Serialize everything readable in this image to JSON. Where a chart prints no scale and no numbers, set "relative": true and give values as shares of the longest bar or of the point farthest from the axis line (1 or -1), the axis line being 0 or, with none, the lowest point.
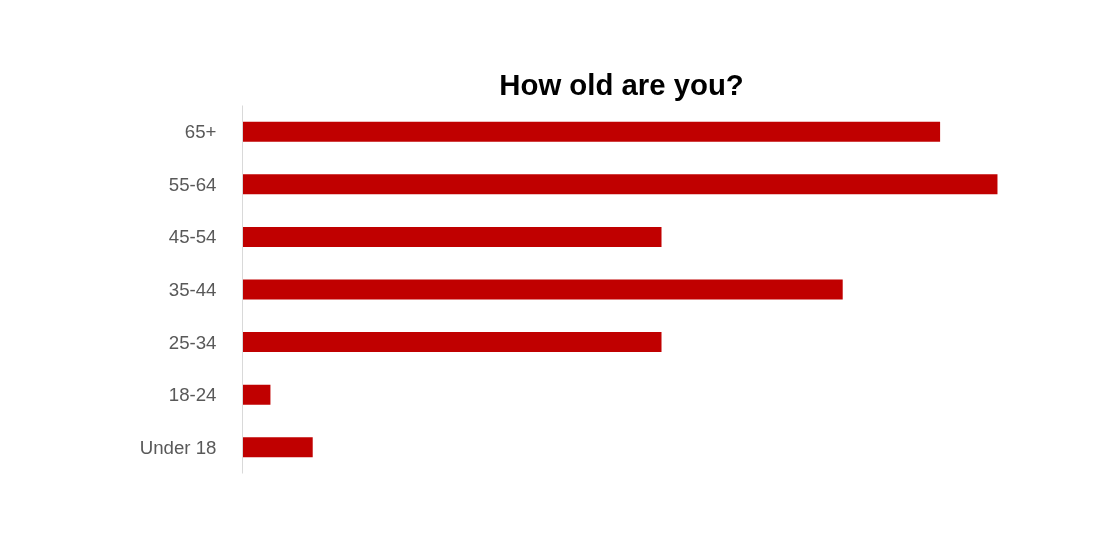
{
  "chart_data": {
    "type": "bar",
    "orientation": "horizontal",
    "relative": true,
    "title": "How old are you?",
    "categories": [
      "65+",
      "55-64",
      "45-54",
      "35-44",
      "25-34",
      "18-24",
      "Under 18"
    ],
    "values": [
      0.924,
      1,
      0.555,
      0.795,
      0.555,
      0.037,
      0.093
    ],
    "color": "#c00000"
  }
}
